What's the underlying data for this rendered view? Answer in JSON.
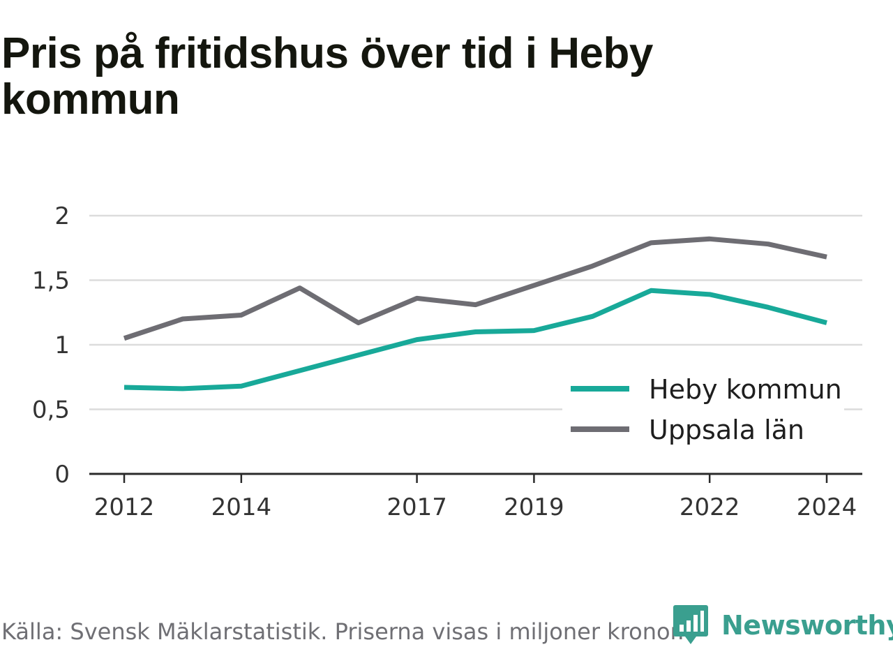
{
  "title": "Pris på fritidshus över tid i Heby kommun",
  "source": "Källa: Svensk Mäklarstatistik. Priserna visas i miljoner kronor.",
  "brand": "Newsworthy",
  "colors": {
    "heby": "#18a999",
    "uppsala": "#6e6d73",
    "grid": "#dcdcdc",
    "axis": "#2a2a2a",
    "brand": "#3a9f8f"
  },
  "chart_data": {
    "type": "line",
    "x": [
      2012,
      2013,
      2014,
      2015,
      2016,
      2017,
      2018,
      2019,
      2020,
      2021,
      2022,
      2023,
      2024
    ],
    "x_tick_labels": [
      "2012",
      "2014",
      "2017",
      "2019",
      "2022",
      "2024"
    ],
    "x_ticks": [
      2012,
      2014,
      2017,
      2019,
      2022,
      2024
    ],
    "y_ticks": [
      0,
      0.5,
      1,
      1.5,
      2
    ],
    "y_tick_labels": [
      "0",
      "0,5",
      "1",
      "1,5",
      "2"
    ],
    "ylim": [
      0,
      2
    ],
    "grid": true,
    "legend_position": "bottom-right",
    "series": [
      {
        "name": "Heby kommun",
        "color": "#18a999",
        "values": [
          0.67,
          0.66,
          0.68,
          0.8,
          0.92,
          1.04,
          1.1,
          1.11,
          1.22,
          1.42,
          1.39,
          1.29,
          1.17
        ]
      },
      {
        "name": "Uppsala län",
        "color": "#6e6d73",
        "values": [
          1.05,
          1.2,
          1.23,
          1.44,
          1.17,
          1.36,
          1.31,
          1.46,
          1.61,
          1.79,
          1.82,
          1.78,
          1.68
        ]
      }
    ]
  }
}
